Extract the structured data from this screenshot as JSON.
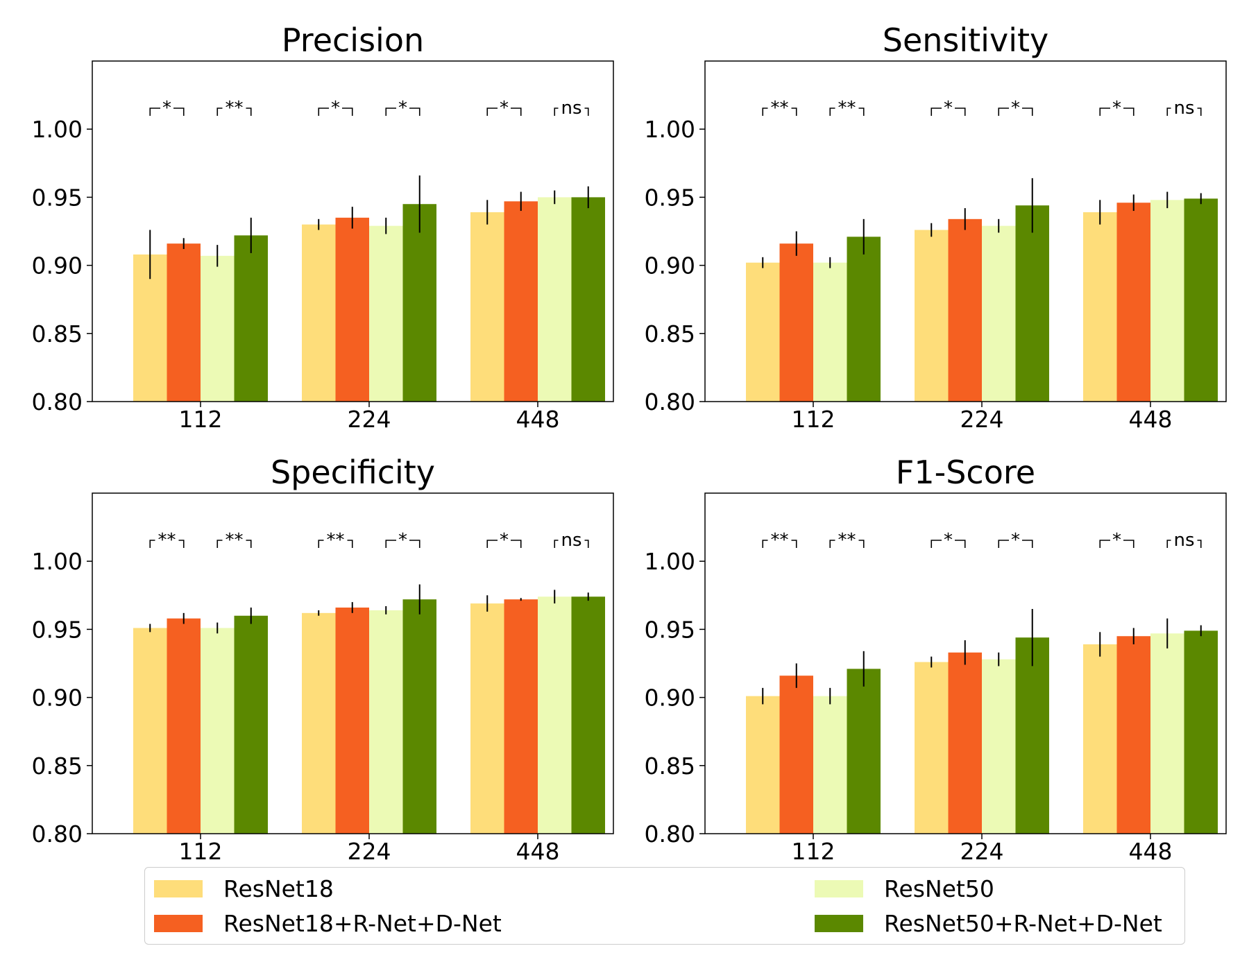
{
  "chart_data": [
    {
      "type": "bar",
      "title": "Precision",
      "categories": [
        "112",
        "224",
        "448"
      ],
      "ylim": [
        0.8,
        1.05
      ],
      "yticks": [
        "0.80",
        "0.85",
        "0.90",
        "0.95",
        "1.00"
      ],
      "series": [
        {
          "name": "ResNet18",
          "values": [
            0.908,
            0.93,
            0.939
          ],
          "errors": [
            0.018,
            0.004,
            0.009
          ]
        },
        {
          "name": "ResNet18+R-Net+D-Net",
          "values": [
            0.916,
            0.935,
            0.947
          ],
          "errors": [
            0.004,
            0.008,
            0.007
          ]
        },
        {
          "name": "ResNet50",
          "values": [
            0.907,
            0.929,
            0.95
          ],
          "errors": [
            0.008,
            0.006,
            0.005
          ]
        },
        {
          "name": "ResNet50+R-Net+D-Net",
          "values": [
            0.922,
            0.945,
            0.95
          ],
          "errors": [
            0.013,
            0.021,
            0.008
          ]
        }
      ],
      "significance": [
        [
          "*",
          "**"
        ],
        [
          "*",
          "*"
        ],
        [
          "*",
          "ns"
        ]
      ]
    },
    {
      "type": "bar",
      "title": "Sensitivity",
      "categories": [
        "112",
        "224",
        "448"
      ],
      "ylim": [
        0.8,
        1.05
      ],
      "yticks": [
        "0.80",
        "0.85",
        "0.90",
        "0.95",
        "1.00"
      ],
      "series": [
        {
          "name": "ResNet18",
          "values": [
            0.902,
            0.926,
            0.939
          ],
          "errors": [
            0.004,
            0.005,
            0.009
          ]
        },
        {
          "name": "ResNet18+R-Net+D-Net",
          "values": [
            0.916,
            0.934,
            0.946
          ],
          "errors": [
            0.009,
            0.008,
            0.006
          ]
        },
        {
          "name": "ResNet50",
          "values": [
            0.902,
            0.929,
            0.948
          ],
          "errors": [
            0.004,
            0.005,
            0.006
          ]
        },
        {
          "name": "ResNet50+R-Net+D-Net",
          "values": [
            0.921,
            0.944,
            0.949
          ],
          "errors": [
            0.013,
            0.02,
            0.004
          ]
        }
      ],
      "significance": [
        [
          "**",
          "**"
        ],
        [
          "*",
          "*"
        ],
        [
          "*",
          "ns"
        ]
      ]
    },
    {
      "type": "bar",
      "title": "Specificity",
      "categories": [
        "112",
        "224",
        "448"
      ],
      "ylim": [
        0.8,
        1.05
      ],
      "yticks": [
        "0.80",
        "0.85",
        "0.90",
        "0.95",
        "1.00"
      ],
      "series": [
        {
          "name": "ResNet18",
          "values": [
            0.951,
            0.962,
            0.969
          ],
          "errors": [
            0.003,
            0.002,
            0.006
          ]
        },
        {
          "name": "ResNet18+R-Net+D-Net",
          "values": [
            0.958,
            0.966,
            0.972
          ],
          "errors": [
            0.004,
            0.004,
            0.001
          ]
        },
        {
          "name": "ResNet50",
          "values": [
            0.951,
            0.964,
            0.974
          ],
          "errors": [
            0.004,
            0.003,
            0.005
          ]
        },
        {
          "name": "ResNet50+R-Net+D-Net",
          "values": [
            0.96,
            0.972,
            0.974
          ],
          "errors": [
            0.006,
            0.011,
            0.003
          ]
        }
      ],
      "significance": [
        [
          "**",
          "**"
        ],
        [
          "**",
          "*"
        ],
        [
          "*",
          "ns"
        ]
      ]
    },
    {
      "type": "bar",
      "title": "F1-Score",
      "categories": [
        "112",
        "224",
        "448"
      ],
      "ylim": [
        0.8,
        1.05
      ],
      "yticks": [
        "0.80",
        "0.85",
        "0.90",
        "0.95",
        "1.00"
      ],
      "series": [
        {
          "name": "ResNet18",
          "values": [
            0.901,
            0.926,
            0.939
          ],
          "errors": [
            0.006,
            0.004,
            0.009
          ]
        },
        {
          "name": "ResNet18+R-Net+D-Net",
          "values": [
            0.916,
            0.933,
            0.945
          ],
          "errors": [
            0.009,
            0.009,
            0.006
          ]
        },
        {
          "name": "ResNet50",
          "values": [
            0.901,
            0.928,
            0.947
          ],
          "errors": [
            0.006,
            0.005,
            0.011
          ]
        },
        {
          "name": "ResNet50+R-Net+D-Net",
          "values": [
            0.921,
            0.944,
            0.949
          ],
          "errors": [
            0.013,
            0.021,
            0.004
          ]
        }
      ],
      "significance": [
        [
          "**",
          "**"
        ],
        [
          "*",
          "*"
        ],
        [
          "*",
          "ns"
        ]
      ]
    }
  ],
  "colors": {
    "ResNet18": "#fedd7a",
    "ResNet18+R-Net+D-Net": "#f56021",
    "ResNet50": "#ecfab5",
    "ResNet50+R-Net+D-Net": "#5b8800"
  },
  "legend": {
    "items": [
      {
        "label": "ResNet18",
        "color": "#fedd7a"
      },
      {
        "label": "ResNet18+R-Net+D-Net",
        "color": "#f56021"
      },
      {
        "label": "ResNet50",
        "color": "#ecfab5"
      },
      {
        "label": "ResNet50+R-Net+D-Net",
        "color": "#5b8800"
      }
    ]
  }
}
